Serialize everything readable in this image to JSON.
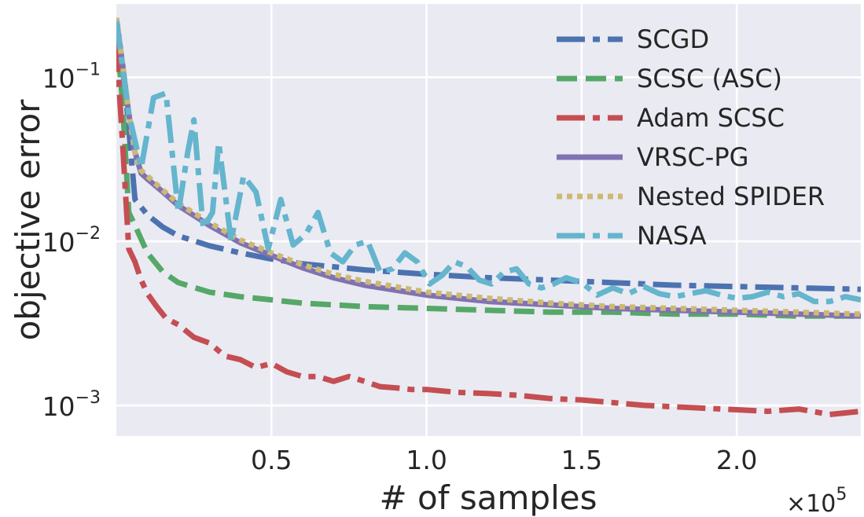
{
  "chart_data": {
    "type": "line",
    "title": "",
    "xlabel": "# of samples",
    "ylabel": "objective error",
    "x_multiplier_label": "×10",
    "x_multiplier_exponent": "5",
    "xlim": [
      0.0,
      2.4
    ],
    "ylim": [
      0.00065,
      0.28
    ],
    "yscale": "log",
    "grid": true,
    "background": "#EAEAF2",
    "legend_position": "top-right",
    "x_ticks": [
      {
        "value": 0.5,
        "label": "0.5"
      },
      {
        "value": 1.0,
        "label": "1.0"
      },
      {
        "value": 1.5,
        "label": "1.5"
      },
      {
        "value": 2.0,
        "label": "2.0"
      }
    ],
    "y_ticks": [
      {
        "value": 0.1,
        "base": "10",
        "exp": "−1"
      },
      {
        "value": 0.01,
        "base": "10",
        "exp": "−2"
      },
      {
        "value": 0.001,
        "base": "10",
        "exp": "−3"
      }
    ],
    "series": [
      {
        "name": "SCGD",
        "color": "#4C72B0",
        "dash": "dashdot",
        "x": [
          0.0,
          0.03,
          0.06,
          0.1,
          0.15,
          0.2,
          0.3,
          0.4,
          0.5,
          0.6,
          0.8,
          1.0,
          1.2,
          1.4,
          1.6,
          1.8,
          2.0,
          2.2,
          2.4
        ],
        "y": [
          0.22,
          0.08,
          0.018,
          0.0145,
          0.0122,
          0.0108,
          0.0094,
          0.0085,
          0.0078,
          0.0073,
          0.0067,
          0.0063,
          0.006,
          0.0058,
          0.0056,
          0.0054,
          0.0053,
          0.0052,
          0.0051
        ]
      },
      {
        "name": "SCSC (ASC)",
        "color": "#55A868",
        "dash": "dashed",
        "x": [
          0.0,
          0.02,
          0.04,
          0.06,
          0.1,
          0.15,
          0.2,
          0.3,
          0.4,
          0.5,
          0.6,
          0.8,
          1.0,
          1.2,
          1.4,
          1.6,
          1.8,
          2.0,
          2.2,
          2.4
        ],
        "y": [
          0.2,
          0.07,
          0.015,
          0.0125,
          0.0085,
          0.0065,
          0.0056,
          0.0049,
          0.0046,
          0.0044,
          0.0042,
          0.004,
          0.0039,
          0.0038,
          0.0037,
          0.0037,
          0.0036,
          0.0036,
          0.0035,
          0.0035
        ]
      },
      {
        "name": "Adam SCSC",
        "color": "#C44E52",
        "dash": "dashdot",
        "x": [
          0.0,
          0.02,
          0.04,
          0.06,
          0.08,
          0.1,
          0.13,
          0.16,
          0.2,
          0.25,
          0.3,
          0.35,
          0.4,
          0.45,
          0.5,
          0.55,
          0.6,
          0.65,
          0.7,
          0.75,
          0.8,
          0.85,
          0.9,
          0.95,
          1.0,
          1.1,
          1.2,
          1.3,
          1.4,
          1.5,
          1.6,
          1.7,
          1.8,
          1.9,
          2.0,
          2.1,
          2.2,
          2.3,
          2.4
        ],
        "y": [
          0.16,
          0.04,
          0.009,
          0.0075,
          0.0058,
          0.0048,
          0.004,
          0.0034,
          0.0031,
          0.0026,
          0.0024,
          0.002,
          0.0019,
          0.0017,
          0.0018,
          0.0016,
          0.0015,
          0.0015,
          0.0014,
          0.0015,
          0.0014,
          0.0013,
          0.00128,
          0.00125,
          0.00125,
          0.0012,
          0.00118,
          0.00115,
          0.0011,
          0.00108,
          0.00104,
          0.001,
          0.00098,
          0.00096,
          0.00094,
          0.00092,
          0.00095,
          0.00088,
          0.00092
        ]
      },
      {
        "name": "VRSC-PG",
        "color": "#8172B2",
        "dash": "solid",
        "x": [
          0.0,
          0.02,
          0.04,
          0.06,
          0.08,
          0.1,
          0.15,
          0.2,
          0.3,
          0.4,
          0.5,
          0.6,
          0.7,
          0.8,
          1.0,
          1.2,
          1.4,
          1.6,
          1.8,
          2.0,
          2.2,
          2.4
        ],
        "y": [
          0.23,
          0.12,
          0.06,
          0.035,
          0.026,
          0.024,
          0.02,
          0.0165,
          0.0125,
          0.0098,
          0.0082,
          0.0069,
          0.006,
          0.0054,
          0.0047,
          0.0043,
          0.0041,
          0.0039,
          0.0038,
          0.0037,
          0.0036,
          0.0035
        ]
      },
      {
        "name": "Nested SPIDER",
        "color": "#CCB974",
        "dash": "dotted",
        "x": [
          0.0,
          0.02,
          0.04,
          0.06,
          0.08,
          0.1,
          0.15,
          0.2,
          0.3,
          0.4,
          0.5,
          0.6,
          0.7,
          0.8,
          1.0,
          1.2,
          1.4,
          1.6,
          1.8,
          2.0,
          2.2,
          2.4
        ],
        "y": [
          0.23,
          0.12,
          0.06,
          0.035,
          0.027,
          0.025,
          0.0205,
          0.017,
          0.013,
          0.0102,
          0.0085,
          0.0072,
          0.0063,
          0.0057,
          0.0049,
          0.0045,
          0.0042,
          0.004,
          0.0039,
          0.0038,
          0.0037,
          0.0036
        ]
      },
      {
        "name": "NASA",
        "color": "#64B5CD",
        "dash": "dashdot",
        "x": [
          0.0,
          0.04,
          0.08,
          0.12,
          0.16,
          0.2,
          0.23,
          0.25,
          0.28,
          0.31,
          0.33,
          0.37,
          0.41,
          0.45,
          0.49,
          0.53,
          0.57,
          0.61,
          0.65,
          0.69,
          0.73,
          0.77,
          0.81,
          0.85,
          0.89,
          0.93,
          0.97,
          1.01,
          1.05,
          1.09,
          1.13,
          1.17,
          1.21,
          1.25,
          1.29,
          1.33,
          1.37,
          1.41,
          1.45,
          1.5,
          1.55,
          1.6,
          1.65,
          1.7,
          1.75,
          1.8,
          1.85,
          1.9,
          1.95,
          2.0,
          2.05,
          2.1,
          2.15,
          2.2,
          2.25,
          2.3,
          2.35,
          2.4
        ],
        "y": [
          0.22,
          0.06,
          0.028,
          0.075,
          0.08,
          0.015,
          0.035,
          0.055,
          0.012,
          0.015,
          0.04,
          0.01,
          0.025,
          0.02,
          0.009,
          0.018,
          0.0095,
          0.011,
          0.015,
          0.0085,
          0.0075,
          0.0095,
          0.01,
          0.0065,
          0.0068,
          0.0085,
          0.0075,
          0.0055,
          0.0062,
          0.0075,
          0.007,
          0.0058,
          0.0055,
          0.0065,
          0.0068,
          0.0055,
          0.0052,
          0.0055,
          0.006,
          0.0056,
          0.0047,
          0.0052,
          0.0048,
          0.0053,
          0.0048,
          0.0046,
          0.0048,
          0.005,
          0.0047,
          0.0045,
          0.0046,
          0.0049,
          0.0046,
          0.0048,
          0.0043,
          0.0043,
          0.0046,
          0.0044
        ]
      }
    ]
  }
}
